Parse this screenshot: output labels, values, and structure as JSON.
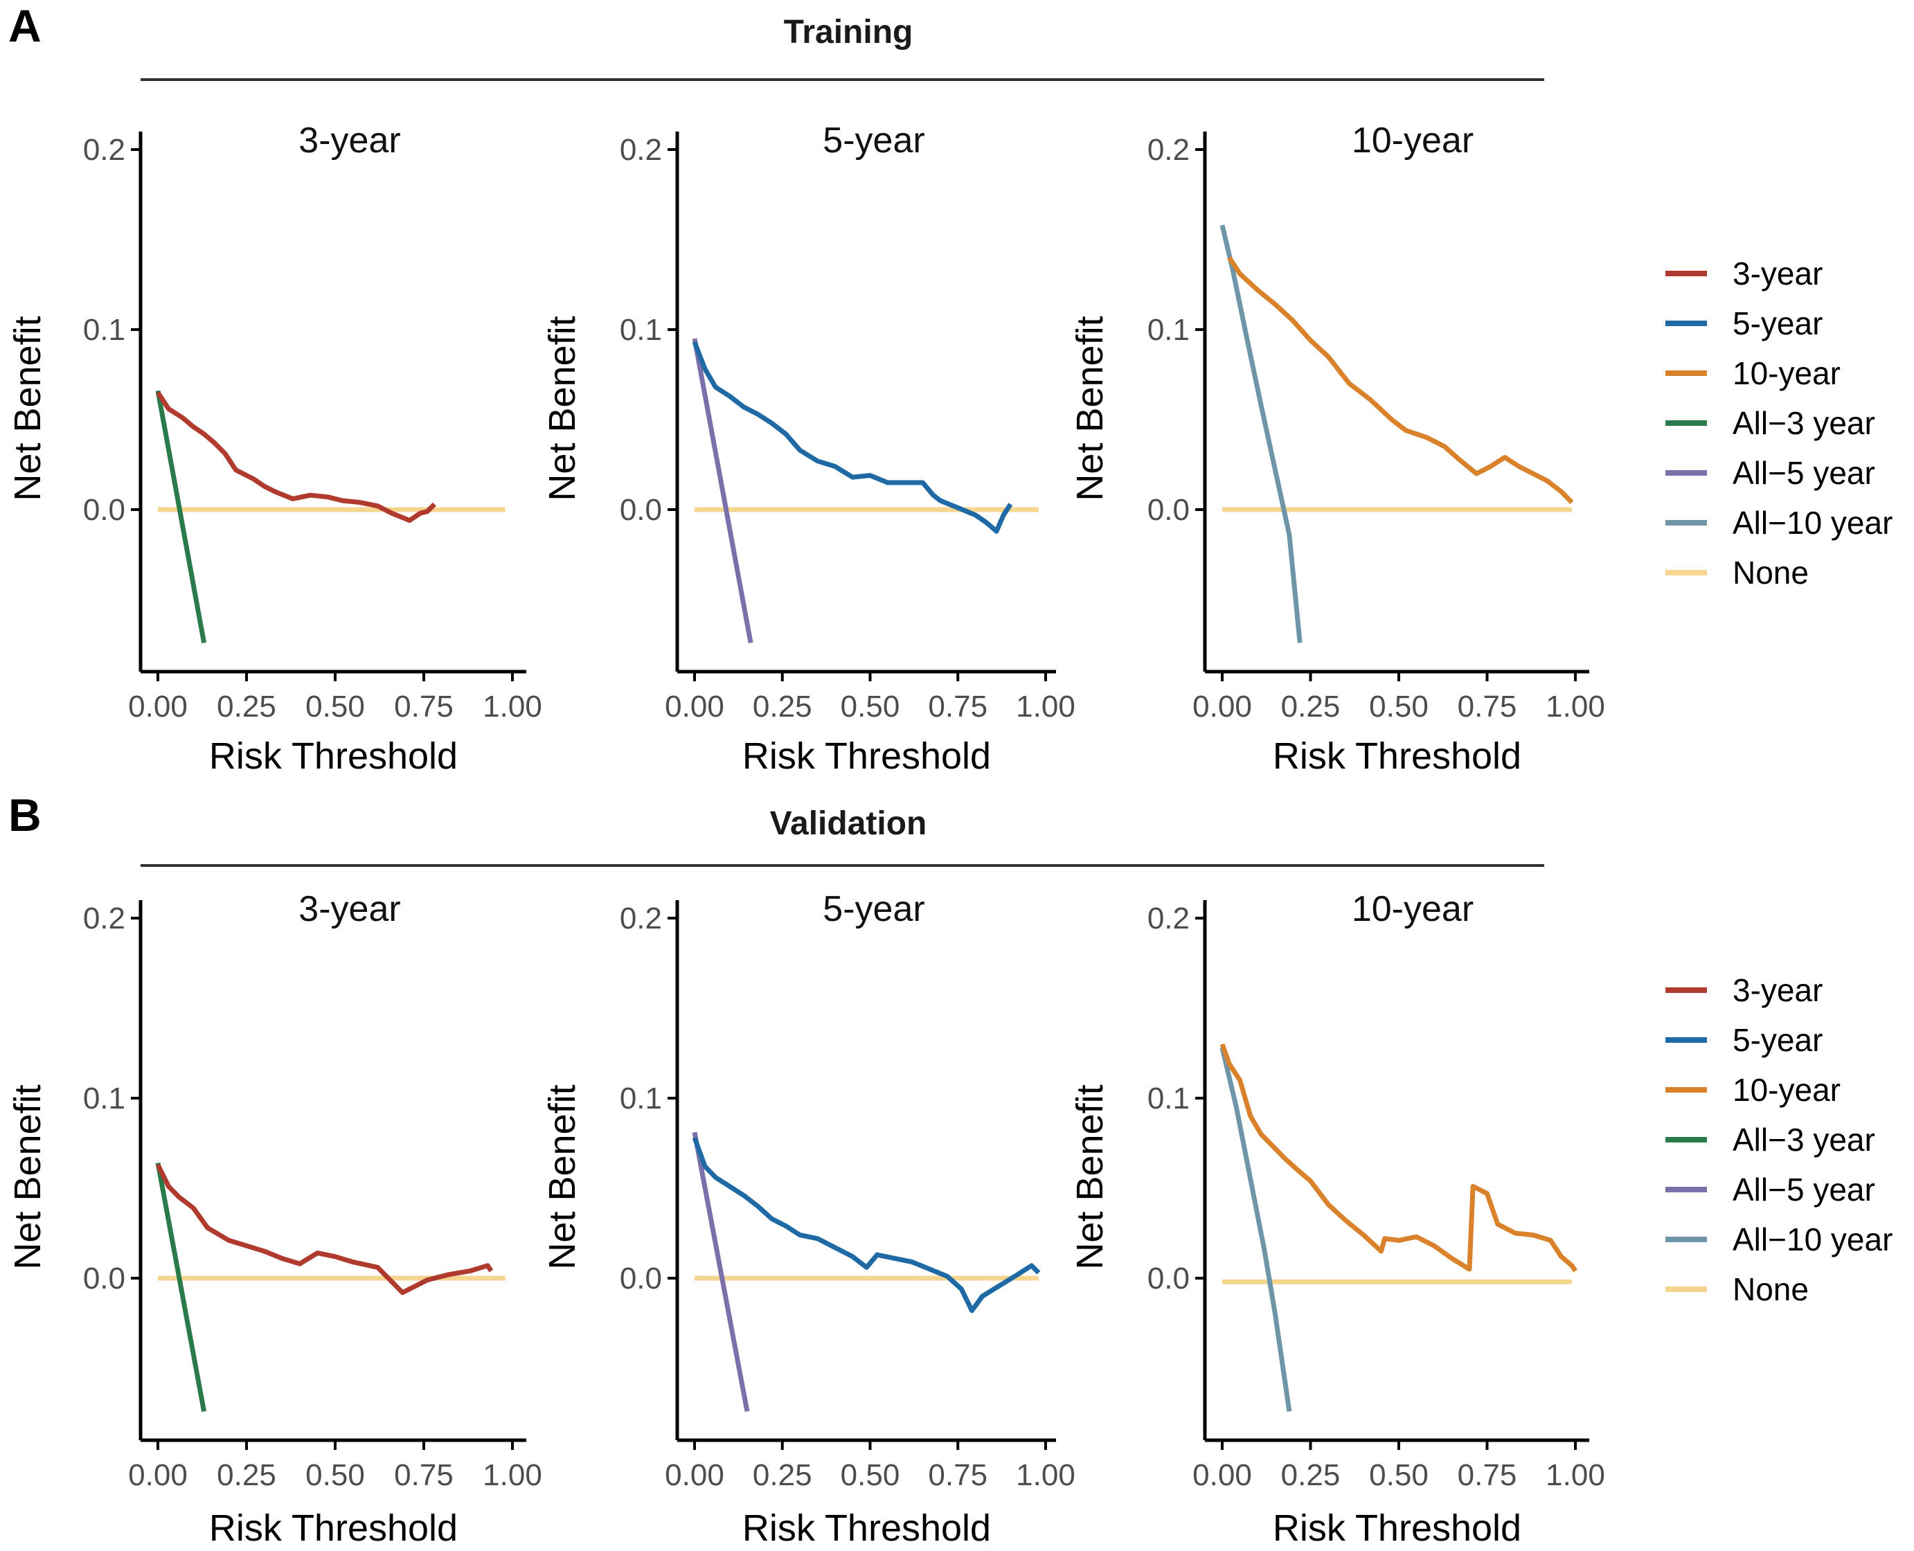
{
  "colors": {
    "y3": "#b03a2e",
    "y5": "#1f6aa5",
    "y10": "#d9822b",
    "all3": "#2b7a4b",
    "all5": "#7c70ab",
    "all10": "#6e95a8",
    "none": "#f6d68f",
    "axis": "#000000",
    "tick_text": "#4d4d4d",
    "strip_line": "#333333"
  },
  "legend": {
    "items": [
      {
        "key": "y3",
        "label": "3-year"
      },
      {
        "key": "y5",
        "label": "5-year"
      },
      {
        "key": "y10",
        "label": "10-year"
      },
      {
        "key": "all3",
        "label": "All−3 year"
      },
      {
        "key": "all5",
        "label": "All−5 year"
      },
      {
        "key": "all10",
        "label": "All−10 year"
      },
      {
        "key": "none",
        "label": "None"
      }
    ]
  },
  "chart_data": [
    {
      "panel_letter": "A",
      "group_title": "Training",
      "panels": [
        {
          "type": "line",
          "title": "3-year",
          "xlabel": "Risk Threshold",
          "ylabel": "Net Benefit",
          "xlim": [
            0,
            1
          ],
          "ylim": [
            -0.09,
            0.21
          ],
          "xticks": [
            "0.00",
            "0.25",
            "0.50",
            "0.75",
            "1.00"
          ],
          "yticks": [
            "0.0",
            "0.1",
            "0.2"
          ],
          "series": [
            {
              "name": "None",
              "key": "none",
              "x": [
                0,
                0.98
              ],
              "y": [
                0,
                0
              ]
            },
            {
              "name": "All−3 year",
              "key": "all3",
              "x": [
                0,
                0.13
              ],
              "y": [
                0.066,
                -0.074
              ]
            },
            {
              "name": "3-year",
              "key": "y3",
              "x": [
                0,
                0.03,
                0.07,
                0.1,
                0.13,
                0.16,
                0.19,
                0.22,
                0.27,
                0.3,
                0.33,
                0.38,
                0.43,
                0.48,
                0.52,
                0.57,
                0.62,
                0.66,
                0.71,
                0.74,
                0.76,
                0.78
              ],
              "y": [
                0.065,
                0.056,
                0.051,
                0.046,
                0.042,
                0.037,
                0.031,
                0.022,
                0.017,
                0.013,
                0.01,
                0.006,
                0.008,
                0.007,
                0.005,
                0.004,
                0.002,
                -0.002,
                -0.006,
                -0.002,
                -0.001,
                0.003
              ]
            }
          ]
        },
        {
          "type": "line",
          "title": "5-year",
          "xlabel": "Risk Threshold",
          "ylabel": "Net Benefit",
          "xlim": [
            0,
            1
          ],
          "ylim": [
            -0.09,
            0.21
          ],
          "xticks": [
            "0.00",
            "0.25",
            "0.50",
            "0.75",
            "1.00"
          ],
          "yticks": [
            "0.0",
            "0.1",
            "0.2"
          ],
          "series": [
            {
              "name": "None",
              "key": "none",
              "x": [
                0,
                0.98
              ],
              "y": [
                0,
                0
              ]
            },
            {
              "name": "All−5 year",
              "key": "all5",
              "x": [
                0,
                0.16
              ],
              "y": [
                0.095,
                -0.074
              ]
            },
            {
              "name": "5-year",
              "key": "y5",
              "x": [
                0,
                0.03,
                0.06,
                0.1,
                0.14,
                0.18,
                0.22,
                0.26,
                0.3,
                0.35,
                0.4,
                0.45,
                0.5,
                0.55,
                0.6,
                0.65,
                0.68,
                0.7,
                0.75,
                0.8,
                0.83,
                0.86,
                0.88,
                0.9
              ],
              "y": [
                0.093,
                0.078,
                0.068,
                0.063,
                0.057,
                0.053,
                0.048,
                0.042,
                0.033,
                0.027,
                0.024,
                0.018,
                0.019,
                0.015,
                0.015,
                0.015,
                0.008,
                0.005,
                0.001,
                -0.003,
                -0.007,
                -0.012,
                -0.003,
                0.003
              ]
            }
          ]
        },
        {
          "type": "line",
          "title": "10-year",
          "xlabel": "Risk Threshold",
          "ylabel": "Net Benefit",
          "xlim": [
            0,
            1
          ],
          "ylim": [
            -0.09,
            0.21
          ],
          "xticks": [
            "0.00",
            "0.25",
            "0.50",
            "0.75",
            "1.00"
          ],
          "yticks": [
            "0.0",
            "0.1",
            "0.2"
          ],
          "series": [
            {
              "name": "None",
              "key": "none",
              "x": [
                0,
                0.99
              ],
              "y": [
                0,
                0
              ]
            },
            {
              "name": "All−10 year",
              "key": "all10",
              "x": [
                0,
                0.03,
                0.07,
                0.11,
                0.15,
                0.19,
                0.22
              ],
              "y": [
                0.158,
                0.133,
                0.095,
                0.058,
                0.022,
                -0.014,
                -0.074
              ]
            },
            {
              "name": "10-year",
              "key": "y10",
              "x": [
                0.02,
                0.05,
                0.1,
                0.15,
                0.2,
                0.25,
                0.3,
                0.36,
                0.42,
                0.48,
                0.52,
                0.58,
                0.63,
                0.67,
                0.72,
                0.76,
                0.8,
                0.84,
                0.88,
                0.92,
                0.96,
                0.99
              ],
              "y": [
                0.14,
                0.131,
                0.122,
                0.114,
                0.105,
                0.094,
                0.085,
                0.07,
                0.061,
                0.05,
                0.044,
                0.04,
                0.035,
                0.028,
                0.02,
                0.024,
                0.029,
                0.024,
                0.02,
                0.016,
                0.01,
                0.004
              ]
            }
          ]
        }
      ]
    },
    {
      "panel_letter": "B",
      "group_title": "Validation",
      "panels": [
        {
          "type": "line",
          "title": "3-year",
          "xlabel": "Risk Threshold",
          "ylabel": "Net Benefit",
          "xlim": [
            0,
            1
          ],
          "ylim": [
            -0.09,
            0.21
          ],
          "xticks": [
            "0.00",
            "0.25",
            "0.50",
            "0.75",
            "1.00"
          ],
          "yticks": [
            "0.0",
            "0.1",
            "0.2"
          ],
          "series": [
            {
              "name": "None",
              "key": "none",
              "x": [
                0,
                0.98
              ],
              "y": [
                0,
                0
              ]
            },
            {
              "name": "All−3 year",
              "key": "all3",
              "x": [
                0,
                0.13
              ],
              "y": [
                0.064,
                -0.074
              ]
            },
            {
              "name": "3-year",
              "key": "y3",
              "x": [
                0,
                0.03,
                0.06,
                0.1,
                0.14,
                0.2,
                0.25,
                0.3,
                0.35,
                0.4,
                0.45,
                0.5,
                0.55,
                0.62,
                0.66,
                0.69,
                0.72,
                0.76,
                0.82,
                0.88,
                0.93,
                0.94
              ],
              "y": [
                0.063,
                0.051,
                0.045,
                0.039,
                0.028,
                0.021,
                0.018,
                0.015,
                0.011,
                0.008,
                0.014,
                0.012,
                0.009,
                0.006,
                -0.002,
                -0.008,
                -0.005,
                -0.001,
                0.002,
                0.004,
                0.007,
                0.004
              ]
            }
          ]
        },
        {
          "type": "line",
          "title": "5-year",
          "xlabel": "Risk Threshold",
          "ylabel": "Net Benefit",
          "xlim": [
            0,
            1
          ],
          "ylim": [
            -0.09,
            0.21
          ],
          "xticks": [
            "0.00",
            "0.25",
            "0.50",
            "0.75",
            "1.00"
          ],
          "yticks": [
            "0.0",
            "0.1",
            "0.2"
          ],
          "series": [
            {
              "name": "None",
              "key": "none",
              "x": [
                0,
                0.98
              ],
              "y": [
                0,
                0
              ]
            },
            {
              "name": "All−5 year",
              "key": "all5",
              "x": [
                0,
                0.15
              ],
              "y": [
                0.081,
                -0.074
              ]
            },
            {
              "name": "5-year",
              "key": "y5",
              "x": [
                0,
                0.03,
                0.06,
                0.1,
                0.14,
                0.18,
                0.22,
                0.26,
                0.3,
                0.35,
                0.4,
                0.45,
                0.49,
                0.52,
                0.57,
                0.62,
                0.67,
                0.72,
                0.76,
                0.79,
                0.82,
                0.87,
                0.92,
                0.96,
                0.98
              ],
              "y": [
                0.078,
                0.062,
                0.056,
                0.051,
                0.046,
                0.04,
                0.033,
                0.029,
                0.024,
                0.022,
                0.017,
                0.012,
                0.006,
                0.013,
                0.011,
                0.009,
                0.005,
                0.001,
                -0.006,
                -0.018,
                -0.01,
                -0.004,
                0.002,
                0.007,
                0.003
              ]
            }
          ]
        },
        {
          "type": "line",
          "title": "10-year",
          "xlabel": "Risk Threshold",
          "ylabel": "Net Benefit",
          "xlim": [
            0,
            1
          ],
          "ylim": [
            -0.09,
            0.21
          ],
          "xticks": [
            "0.00",
            "0.25",
            "0.50",
            "0.75",
            "1.00"
          ],
          "yticks": [
            "0.0",
            "0.1",
            "0.2"
          ],
          "series": [
            {
              "name": "None",
              "key": "none",
              "x": [
                0,
                0.99
              ],
              "y": [
                -0.002,
                -0.002
              ]
            },
            {
              "name": "All−10 year",
              "key": "all10",
              "x": [
                0,
                0.04,
                0.08,
                0.12,
                0.15,
                0.19
              ],
              "y": [
                0.128,
                0.095,
                0.055,
                0.015,
                -0.02,
                -0.074
              ]
            },
            {
              "name": "10-year",
              "key": "y10",
              "x": [
                0,
                0.02,
                0.05,
                0.08,
                0.11,
                0.15,
                0.18,
                0.22,
                0.25,
                0.3,
                0.35,
                0.4,
                0.45,
                0.46,
                0.5,
                0.55,
                0.6,
                0.65,
                0.7,
                0.71,
                0.75,
                0.78,
                0.83,
                0.88,
                0.93,
                0.96,
                0.99,
                1.0
              ],
              "y": [
                0.13,
                0.119,
                0.11,
                0.09,
                0.08,
                0.072,
                0.066,
                0.059,
                0.054,
                0.041,
                0.032,
                0.024,
                0.015,
                0.022,
                0.021,
                0.023,
                0.018,
                0.011,
                0.005,
                0.051,
                0.047,
                0.03,
                0.025,
                0.024,
                0.021,
                0.012,
                0.007,
                0.004
              ]
            }
          ]
        }
      ]
    }
  ]
}
